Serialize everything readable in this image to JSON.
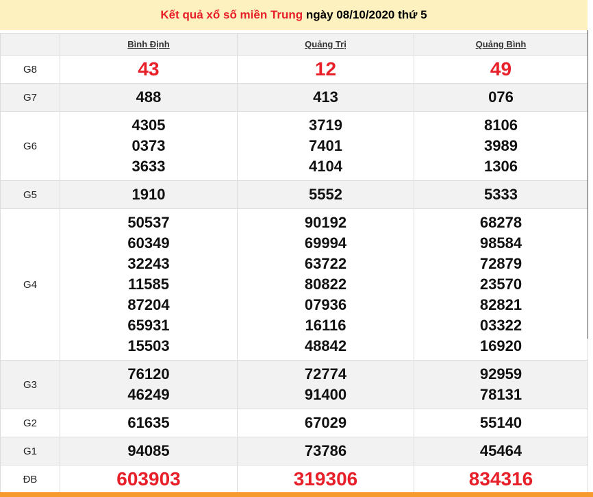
{
  "title": {
    "highlight": "Kết quả xổ số miền Trung",
    "rest": " ngày 08/10/2020 thứ 5"
  },
  "colors": {
    "accent_red": "#e8202a",
    "title_bg": "#fdf1c0",
    "bottom_bar": "#f79a2e"
  },
  "provinces": [
    "Bình Định",
    "Quảng Trị",
    "Quảng Bình"
  ],
  "rows": [
    {
      "label": "G8",
      "big": true,
      "values": [
        [
          "43"
        ],
        [
          "12"
        ],
        [
          "49"
        ]
      ]
    },
    {
      "label": "G7",
      "values": [
        [
          "488"
        ],
        [
          "413"
        ],
        [
          "076"
        ]
      ]
    },
    {
      "label": "G6",
      "values": [
        [
          "4305",
          "0373",
          "3633"
        ],
        [
          "3719",
          "7401",
          "4104"
        ],
        [
          "8106",
          "3989",
          "1306"
        ]
      ]
    },
    {
      "label": "G5",
      "values": [
        [
          "1910"
        ],
        [
          "5552"
        ],
        [
          "5333"
        ]
      ]
    },
    {
      "label": "G4",
      "values": [
        [
          "50537",
          "60349",
          "32243",
          "11585",
          "87204",
          "65931",
          "15503"
        ],
        [
          "90192",
          "69994",
          "63722",
          "80822",
          "07936",
          "16116",
          "48842"
        ],
        [
          "68278",
          "98584",
          "72879",
          "23570",
          "82821",
          "03322",
          "16920"
        ]
      ]
    },
    {
      "label": "G3",
      "values": [
        [
          "76120",
          "46249"
        ],
        [
          "72774",
          "91400"
        ],
        [
          "92959",
          "78131"
        ]
      ]
    },
    {
      "label": "G2",
      "values": [
        [
          "61635"
        ],
        [
          "67029"
        ],
        [
          "55140"
        ]
      ]
    },
    {
      "label": "G1",
      "values": [
        [
          "94085"
        ],
        [
          "73786"
        ],
        [
          "45464"
        ]
      ]
    },
    {
      "label": "ĐB",
      "big": true,
      "values": [
        [
          "603903"
        ],
        [
          "319306"
        ],
        [
          "834316"
        ]
      ]
    }
  ]
}
